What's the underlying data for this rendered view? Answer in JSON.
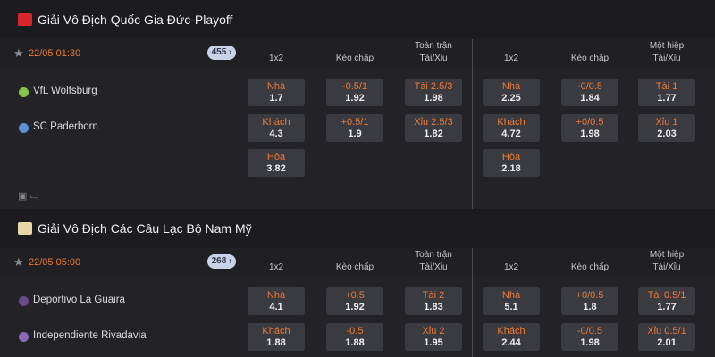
{
  "leagues": [
    {
      "title": "Giải Vô Địch Quốc Gia Đức-Playoff",
      "match": {
        "time": "22/05 01:30",
        "count": "455",
        "headers": [
          [
            "1x2"
          ],
          [
            "Kèo chấp"
          ],
          [
            "Toàn trận",
            "Tài/Xỉu"
          ],
          [
            "1x2"
          ],
          [
            "Kèo chấp"
          ],
          [
            "Một hiệp",
            "Tài/Xỉu"
          ]
        ],
        "teams": [
          "VfL Wolfsburg",
          "SC Paderborn"
        ],
        "rows": [
          [
            {
              "label": "Nhà",
              "odds": "1.7"
            },
            {
              "label": "-0.5/1",
              "odds": "1.92"
            },
            {
              "label": "Tài 2.5/3",
              "odds": "1.98"
            },
            {
              "label": "Nhà",
              "odds": "2.25"
            },
            {
              "label": "-0/0.5",
              "odds": "1.84"
            },
            {
              "label": "Tài 1",
              "odds": "1.77"
            }
          ],
          [
            {
              "label": "Khách",
              "odds": "4.3"
            },
            {
              "label": "+0.5/1",
              "odds": "1.9"
            },
            {
              "label": "Xỉu 2.5/3",
              "odds": "1.82"
            },
            {
              "label": "Khách",
              "odds": "4.72"
            },
            {
              "label": "+0/0.5",
              "odds": "1.98"
            },
            {
              "label": "Xỉu 1",
              "odds": "2.03"
            }
          ],
          [
            {
              "label": "Hòa",
              "odds": "3.82"
            },
            null,
            null,
            {
              "label": "Hòa",
              "odds": "2.18"
            },
            null,
            null
          ]
        ]
      }
    },
    {
      "title": "Giải Vô Địch Các Câu Lạc Bộ Nam Mỹ",
      "match": {
        "time": "22/05 05:00",
        "count": "268",
        "headers": [
          [
            "1x2"
          ],
          [
            "Kèo chấp"
          ],
          [
            "Toàn trận",
            "Tài/Xỉu"
          ],
          [
            "1x2"
          ],
          [
            "Kèo chấp"
          ],
          [
            "Một hiệp",
            "Tài/Xỉu"
          ]
        ],
        "teams": [
          "Deportivo La Guaira",
          "Independiente Rivadavia"
        ],
        "rows": [
          [
            {
              "label": "Nhà",
              "odds": "4.1"
            },
            {
              "label": "+0.5",
              "odds": "1.92"
            },
            {
              "label": "Tài 2",
              "odds": "1.83"
            },
            {
              "label": "Nhà",
              "odds": "5.1"
            },
            {
              "label": "+0/0.5",
              "odds": "1.8"
            },
            {
              "label": "Tài 0.5/1",
              "odds": "1.77"
            }
          ],
          [
            {
              "label": "Khách",
              "odds": "1.88"
            },
            {
              "label": "-0.5",
              "odds": "1.88"
            },
            {
              "label": "Xỉu 2",
              "odds": "1.95"
            },
            {
              "label": "Khách",
              "odds": "2.44"
            },
            {
              "label": "-0/0.5",
              "odds": "1.98"
            },
            {
              "label": "Xỉu 0.5/1",
              "odds": "2.01"
            }
          ]
        ]
      }
    }
  ]
}
